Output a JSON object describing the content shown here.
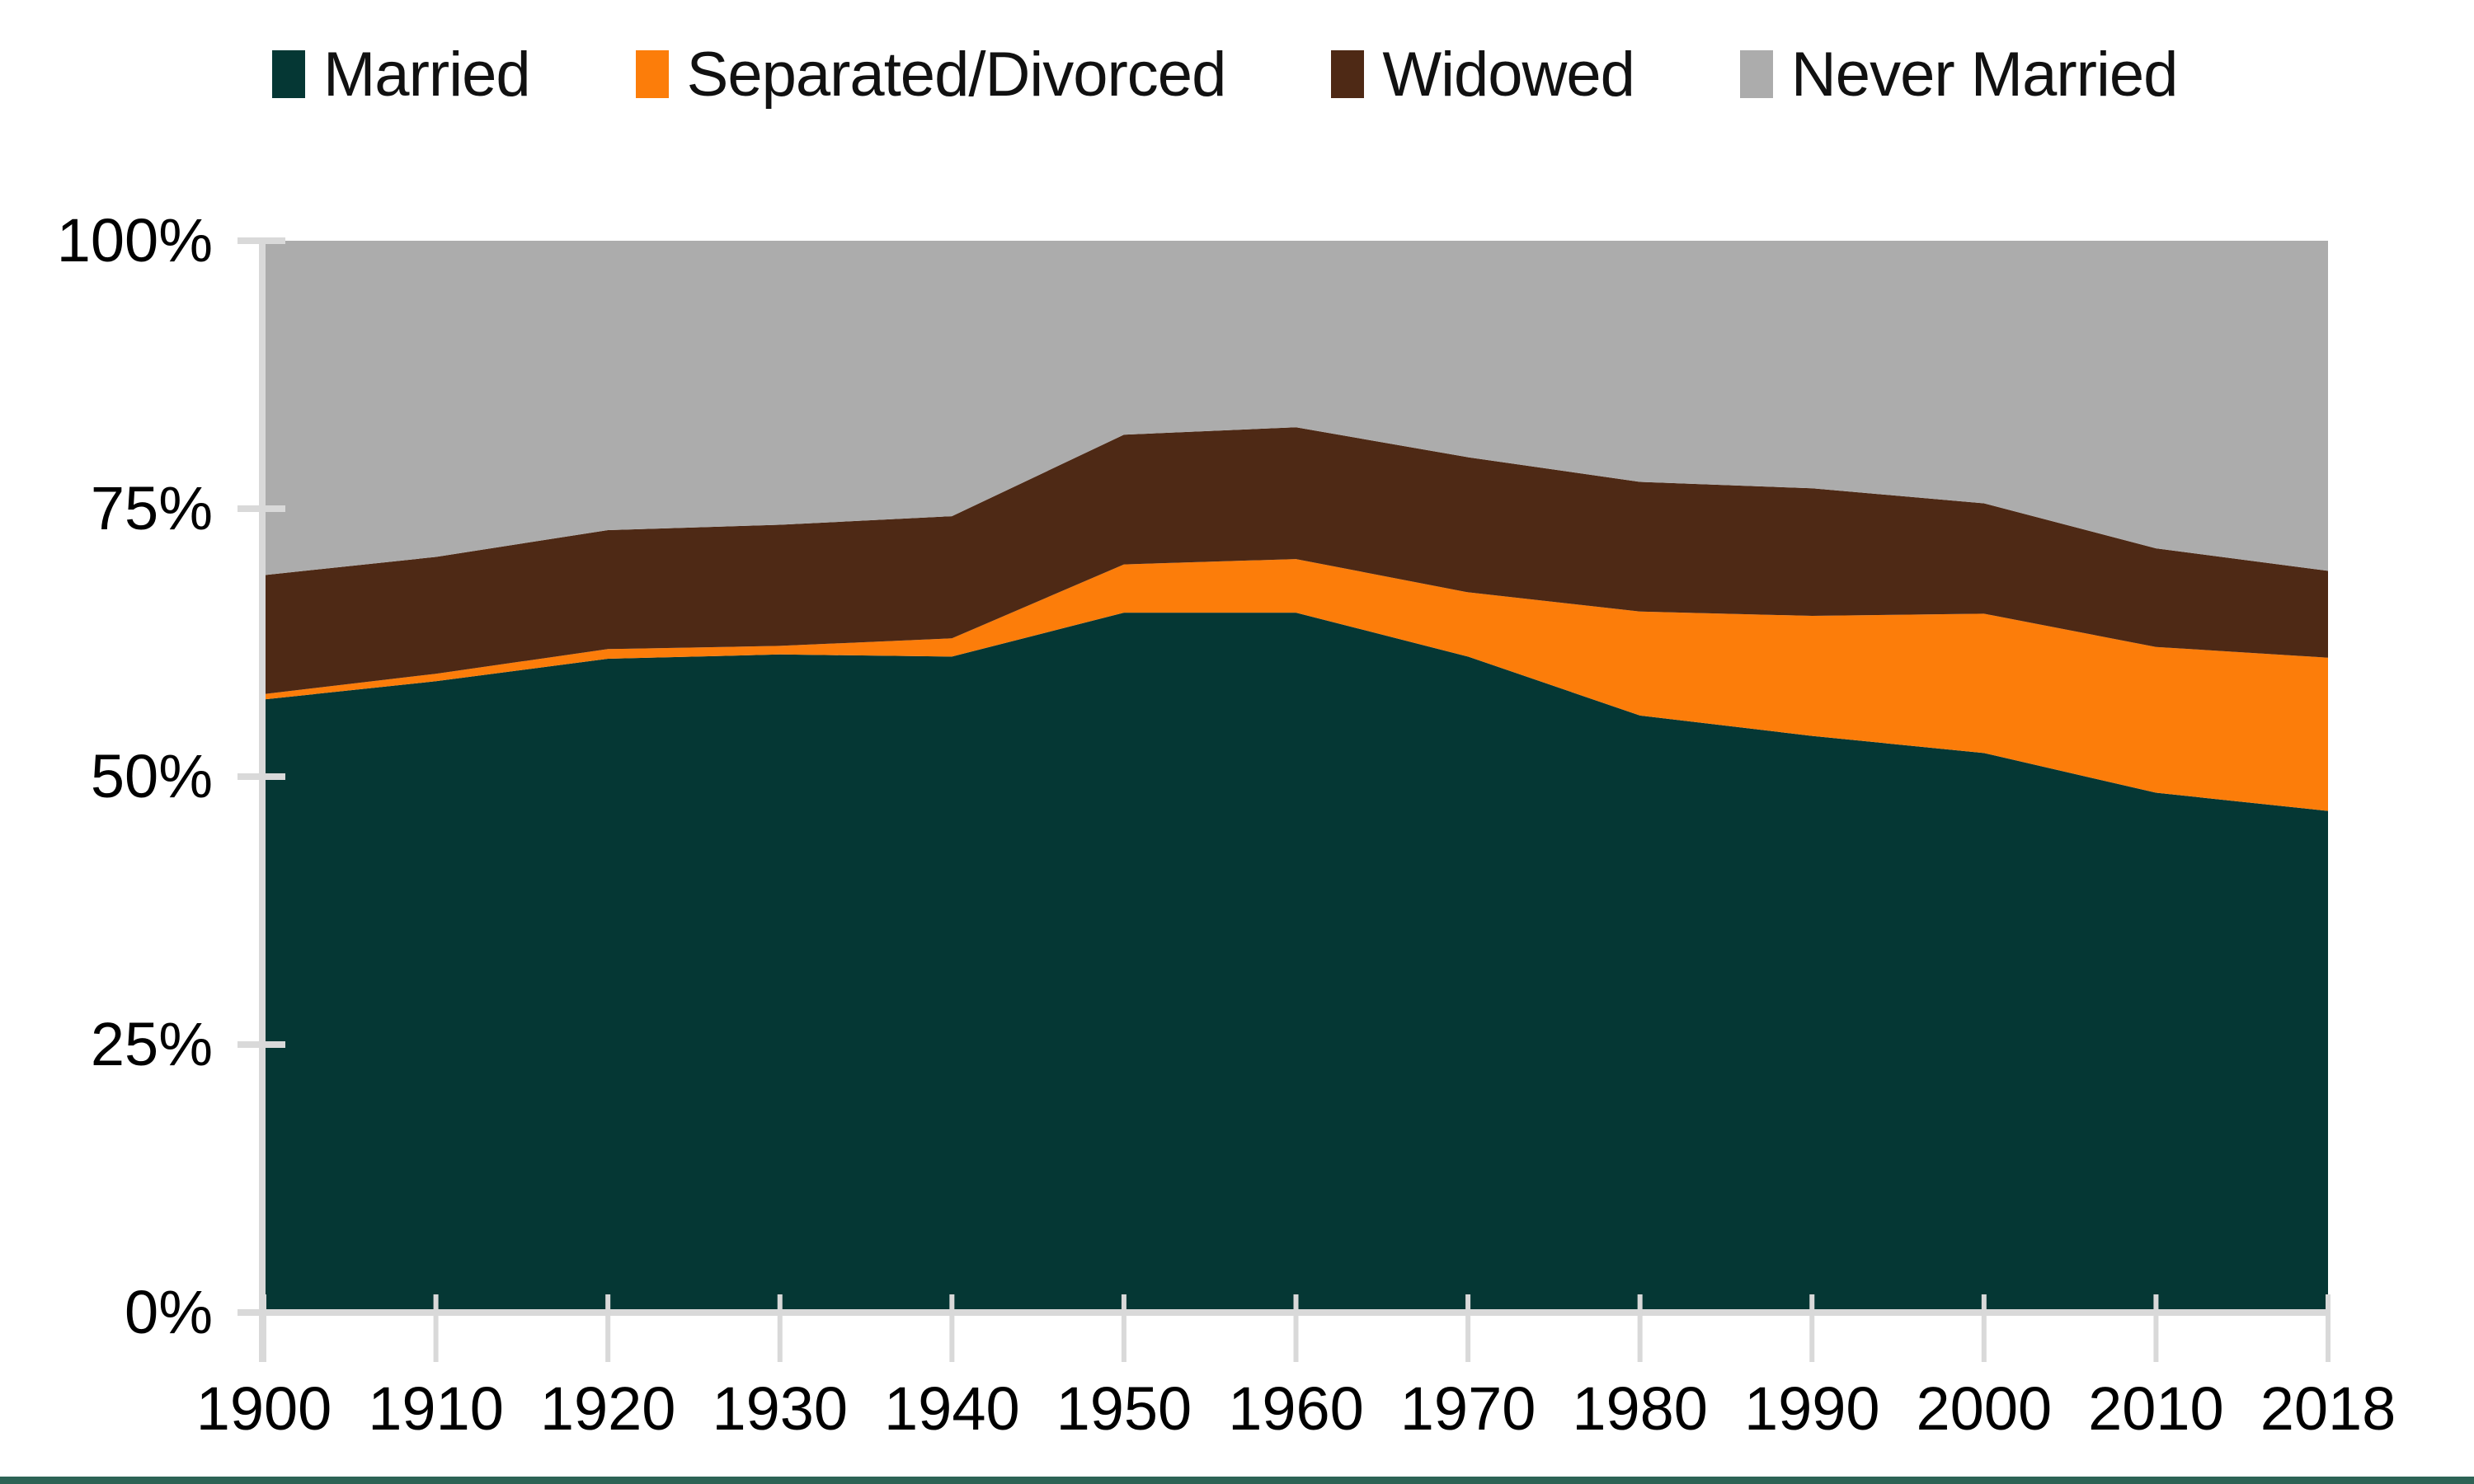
{
  "legend": {
    "items": [
      {
        "label": "Married",
        "color": "#053734"
      },
      {
        "label": "Separated/Divorced",
        "color": "#FC7D0A"
      },
      {
        "label": "Widowed",
        "color": "#4E2915"
      },
      {
        "label": "Never Married",
        "color": "#ACACAC"
      }
    ]
  },
  "chart_data": {
    "type": "area",
    "stacked": true,
    "title": "",
    "categories": [
      "1900",
      "1910",
      "1920",
      "1930",
      "1940",
      "1950",
      "1960",
      "1970",
      "1980",
      "1990",
      "2000",
      "2010",
      "2018"
    ],
    "series": [
      {
        "name": "Married",
        "color": "#053734",
        "values": [
          57.2,
          58.9,
          61.0,
          61.4,
          61.2,
          65.3,
          65.3,
          61.2,
          55.7,
          53.8,
          52.2,
          48.5,
          46.8
        ]
      },
      {
        "name": "Separated/Divorced",
        "color": "#FC7D0A",
        "values": [
          0.5,
          0.7,
          0.9,
          0.8,
          1.7,
          4.5,
          5.0,
          6.0,
          9.7,
          11.2,
          13.0,
          13.6,
          14.3
        ]
      },
      {
        "name": "Widowed",
        "color": "#4E2915",
        "values": [
          11.1,
          10.9,
          11.1,
          11.3,
          11.4,
          12.1,
          12.3,
          12.6,
          12.1,
          11.9,
          10.3,
          9.2,
          8.1
        ]
      },
      {
        "name": "Never Married",
        "color": "#ACACAC",
        "values": [
          31.2,
          29.5,
          27.0,
          26.5,
          25.7,
          18.1,
          17.4,
          20.2,
          22.5,
          23.1,
          24.5,
          28.7,
          30.8
        ]
      }
    ],
    "y_axis": {
      "ticks": [
        {
          "value": 0,
          "label": "0%"
        },
        {
          "value": 25,
          "label": "25%"
        },
        {
          "value": 50,
          "label": "50%"
        },
        {
          "value": 75,
          "label": "75%"
        },
        {
          "value": 100,
          "label": "100%"
        }
      ]
    },
    "ylim": [
      0,
      100
    ],
    "grid": false,
    "legend_position": "top"
  },
  "colors": {
    "axis": "#D9D9D9",
    "label_text": "#000000",
    "footer_bar": "#2D6355"
  }
}
